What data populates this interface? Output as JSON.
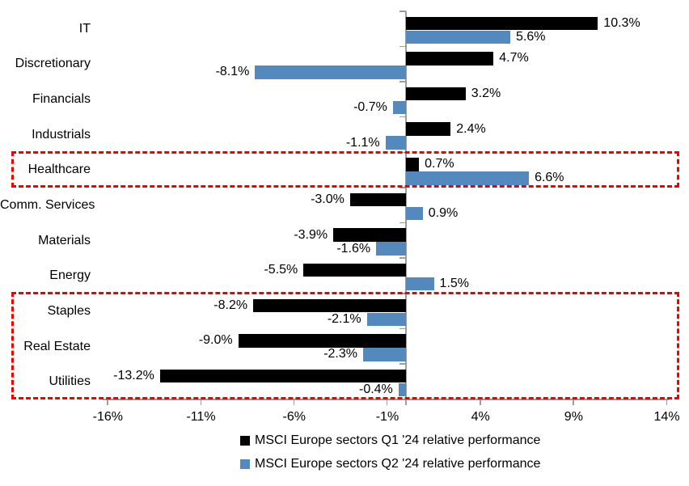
{
  "chart_data": {
    "type": "bar",
    "orientation": "horizontal",
    "title": "",
    "categories": [
      "IT",
      "Discretionary",
      "Financials",
      "Industrials",
      "Healthcare",
      "Comm. Services",
      "Materials",
      "Energy",
      "Staples",
      "Real Estate",
      "Utilities"
    ],
    "series": [
      {
        "name": "MSCI Europe sectors Q1 '24 relative performance",
        "color": "#000000",
        "values": [
          10.3,
          4.7,
          3.2,
          2.4,
          0.7,
          -3.0,
          -3.9,
          -5.5,
          -8.2,
          -9.0,
          -13.2
        ],
        "labels": [
          "10.3%",
          "4.7%",
          "3.2%",
          "2.4%",
          "0.7%",
          "-3.0%",
          "-3.9%",
          "-5.5%",
          "-8.2%",
          "-9.0%",
          "-13.2%"
        ]
      },
      {
        "name": "MSCI Europe sectors Q2 '24 relative performance",
        "color": "#5389BD",
        "values": [
          5.6,
          -8.1,
          -0.7,
          -1.1,
          6.6,
          0.9,
          -1.6,
          1.5,
          -2.1,
          -2.3,
          -0.4
        ],
        "labels": [
          "5.6%",
          "-8.1%",
          "-0.7%",
          "-1.1%",
          "6.6%",
          "0.9%",
          "-1.6%",
          "1.5%",
          "-2.1%",
          "-2.3%",
          "-0.4%"
        ]
      }
    ],
    "value_axis": {
      "unit": "%",
      "min": -16,
      "max": 14,
      "tick_values": [
        -16,
        -11,
        -6,
        -1,
        4,
        9,
        14
      ],
      "ticks": [
        "-16%",
        "-11%",
        "-6%",
        "-1%",
        "4%",
        "9%",
        "14%"
      ]
    },
    "grid": false,
    "legend_position": "bottom",
    "highlights": [
      {
        "name": "healthcare-highlight-box",
        "color": "#f20000",
        "categories": [
          "Healthcare"
        ]
      },
      {
        "name": "defensives-highlight-box",
        "color": "#f20000",
        "categories": [
          "Staples",
          "Real Estate",
          "Utilities"
        ]
      }
    ]
  }
}
